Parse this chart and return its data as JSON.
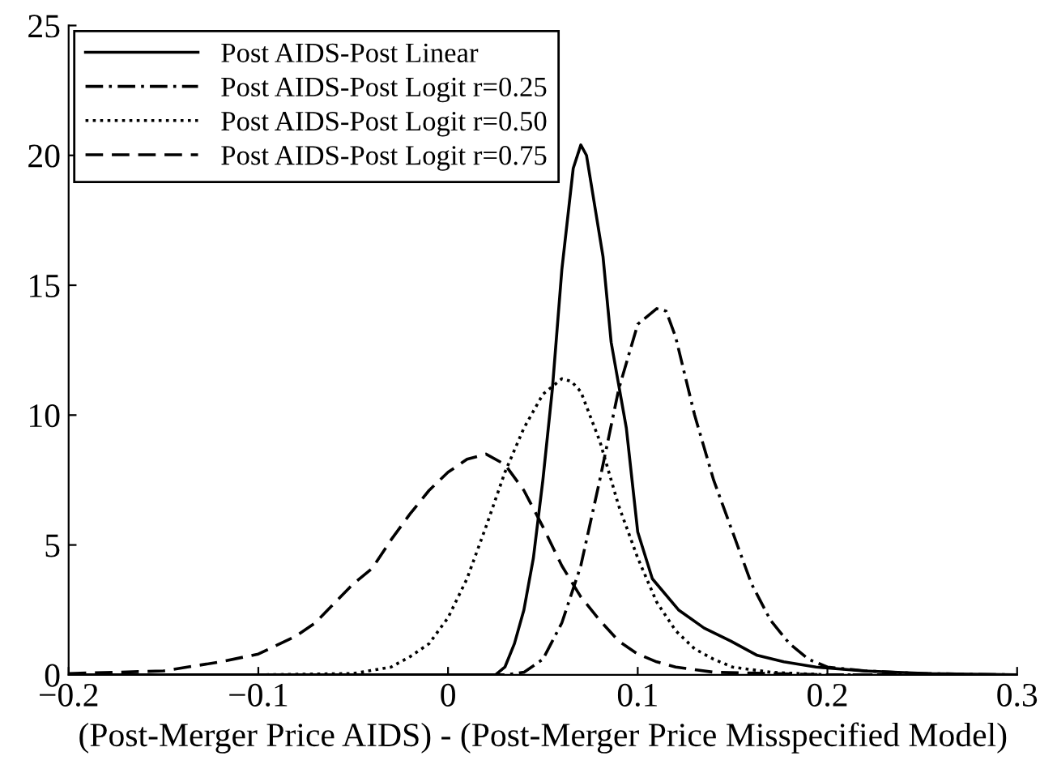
{
  "chart_data": {
    "type": "line",
    "xlabel": "(Post-Merger Price AIDS) - (Post-Merger Price Misspecified Model)",
    "xlim": [
      -0.2,
      0.3
    ],
    "ylim": [
      0,
      25
    ],
    "xticks": [
      {
        "value": -0.2,
        "label": "−0.2"
      },
      {
        "value": -0.1,
        "label": "−0.1"
      },
      0,
      0.1,
      0.2,
      0.3
    ],
    "yticks": [
      0,
      5,
      10,
      15,
      20,
      25
    ],
    "grid": false,
    "legend": "top left",
    "series": [
      {
        "name": "Post AIDS-Post Linear",
        "color": "#000000",
        "line_style": "solid",
        "x": [
          -0.2,
          0.025,
          0.03,
          0.035,
          0.04,
          0.045,
          0.05,
          0.055,
          0.06,
          0.066,
          0.07,
          0.073,
          0.0817,
          0.086,
          0.094,
          0.1,
          0.1077,
          0.1215,
          0.135,
          0.149,
          0.163,
          0.177,
          0.194,
          0.219,
          0.253,
          0.3
        ],
        "values": [
          0,
          0,
          0.3,
          1.2,
          2.5,
          4.5,
          7.5,
          11,
          15.6,
          19.5,
          20.4,
          20,
          16.1,
          12.8,
          9.5,
          5.5,
          3.7,
          2.5,
          1.8,
          1.3,
          0.75,
          0.5,
          0.3,
          0.15,
          0.05,
          0
        ]
      },
      {
        "name": "Post AIDS-Post Logit r=0.25",
        "color": "#000000",
        "line_style": "dashdot",
        "x": [
          -0.2,
          0.03,
          0.04,
          0.05,
          0.06,
          0.07,
          0.08,
          0.09,
          0.1,
          0.11,
          0.115,
          0.12,
          0.13,
          0.14,
          0.15,
          0.16,
          0.17,
          0.18,
          0.19,
          0.2,
          0.22,
          0.25,
          0.3
        ],
        "values": [
          0,
          0,
          0.1,
          0.6,
          2.0,
          4.2,
          7.5,
          11,
          13.5,
          14.1,
          14.0,
          13.0,
          10.0,
          7.5,
          5.5,
          3.5,
          2.1,
          1.2,
          0.6,
          0.3,
          0.15,
          0.05,
          0
        ]
      },
      {
        "name": "Post AIDS-Post Logit r=0.50",
        "color": "#000000",
        "line_style": "dotted",
        "x": [
          -0.2,
          -0.1,
          -0.05,
          -0.03,
          -0.02,
          -0.01,
          0,
          0.01,
          0.02,
          0.03,
          0.04,
          0.05,
          0.06,
          0.065,
          0.07,
          0.08,
          0.09,
          0.1,
          0.11,
          0.12,
          0.13,
          0.14,
          0.15,
          0.17,
          0.2,
          0.3
        ],
        "values": [
          0,
          0,
          0.05,
          0.3,
          0.7,
          1.2,
          2.2,
          3.7,
          5.7,
          7.8,
          9.5,
          10.8,
          11.4,
          11.3,
          10.9,
          9.0,
          6.5,
          4.5,
          2.8,
          1.7,
          1.0,
          0.6,
          0.3,
          0.1,
          0,
          0
        ]
      },
      {
        "name": "Post AIDS-Post Logit r=0.75",
        "color": "#000000",
        "line_style": "dashed",
        "x": [
          -0.2,
          -0.15,
          -0.12,
          -0.1,
          -0.08,
          -0.07,
          -0.05,
          -0.04,
          -0.03,
          -0.02,
          -0.01,
          0,
          0.01,
          0.02,
          0.03,
          0.04,
          0.05,
          0.06,
          0.07,
          0.08,
          0.09,
          0.1,
          0.11,
          0.12,
          0.14,
          0.2,
          0.3
        ],
        "values": [
          0.05,
          0.15,
          0.5,
          0.8,
          1.5,
          2.0,
          3.5,
          4.1,
          5.2,
          6.2,
          7.1,
          7.8,
          8.3,
          8.5,
          8.1,
          7.1,
          5.7,
          4.2,
          3.0,
          2.1,
          1.3,
          0.8,
          0.5,
          0.3,
          0.1,
          0,
          0
        ]
      }
    ]
  }
}
